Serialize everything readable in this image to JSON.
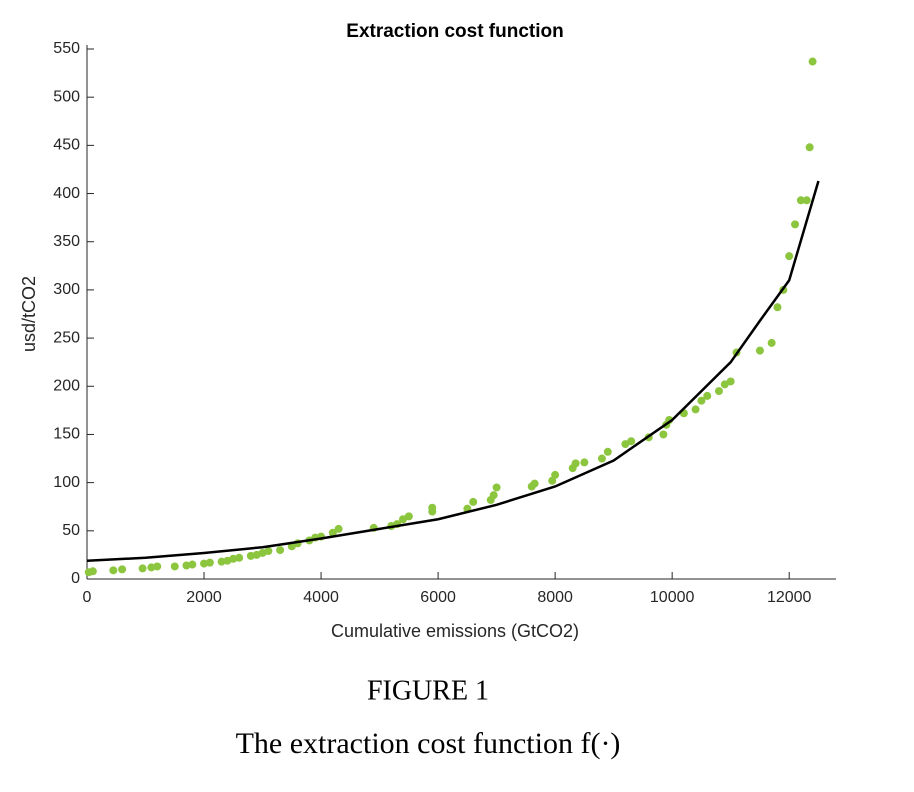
{
  "chart_data": {
    "type": "scatter",
    "title": "Extraction cost function",
    "x_label": "Cumulative emissions (GtCO2)",
    "y_label": "usd/tCO2",
    "xlim": [
      0,
      12800
    ],
    "ylim": [
      0,
      550
    ],
    "xticks": [
      0,
      2000,
      4000,
      6000,
      8000,
      10000,
      12000
    ],
    "yticks": [
      0,
      50,
      100,
      150,
      200,
      250,
      300,
      350,
      400,
      450,
      500,
      550
    ],
    "series": [
      {
        "color": "#8cc63f",
        "x": [
          30,
          100,
          450,
          600,
          950,
          1100,
          1200,
          1500,
          1700,
          1800,
          2000,
          2100,
          2300,
          2400,
          2500,
          2600,
          2800,
          2900,
          3000,
          3100,
          3300,
          3500,
          3600,
          3800,
          3900,
          4000,
          4200,
          4300,
          4900,
          5200,
          5300,
          5400,
          5500,
          5900,
          5900,
          6500,
          6600,
          6900,
          6950,
          7000,
          7600,
          7650,
          7950,
          8000,
          8300,
          8350,
          8500,
          8800,
          8900,
          9200,
          9300,
          9600,
          9850,
          9900,
          9950,
          10200,
          10400,
          10500,
          10600,
          10800,
          10900,
          11000,
          11100,
          11500,
          11700,
          11800,
          11900,
          12000,
          12100,
          12200,
          12300,
          12350,
          12400
        ],
        "values": [
          7,
          8,
          9,
          10,
          11,
          12,
          13,
          13,
          14,
          15,
          16,
          17,
          18,
          19,
          21,
          22,
          24,
          25,
          27,
          29,
          30,
          34,
          37,
          40,
          43,
          44,
          48,
          52,
          53,
          55,
          57,
          62,
          65,
          70,
          74,
          73,
          80,
          82,
          87,
          95,
          96,
          99,
          102,
          108,
          115,
          120,
          121,
          125,
          132,
          140,
          143,
          147,
          150,
          160,
          165,
          172,
          176,
          185,
          190,
          195,
          202,
          205,
          235,
          237,
          245,
          282,
          300,
          335,
          368,
          393,
          393,
          448,
          537
        ]
      },
      {
        "type": "line",
        "color": "#000000",
        "x": [
          0,
          1000,
          2000,
          3000,
          4000,
          5000,
          6000,
          7000,
          8000,
          9000,
          10000,
          11000,
          11500,
          12000,
          12500
        ],
        "values": [
          19,
          22,
          27,
          33,
          42,
          52,
          62,
          77,
          96,
          123,
          165,
          225,
          268,
          310,
          413
        ]
      }
    ]
  },
  "caption": {
    "label": "FIGURE 1",
    "text": "The extraction cost function f(·)"
  }
}
